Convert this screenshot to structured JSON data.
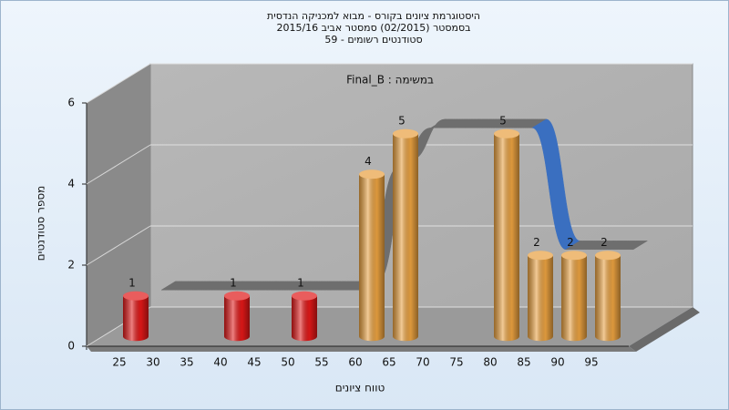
{
  "chart_data": {
    "type": "bar3d",
    "title": [
      "היסטוגרמת ציונים בקורס - מבוא למכניקה הנדסית",
      "בסמסטר (02/2015) סמסטר אביב 2015/16",
      "סטודנטים רשומים - 59"
    ],
    "subtitle": "Final_B : במשימה",
    "x_label": "טווח ציונים",
    "y_label": "מספר סטודנטים",
    "categories": [
      "25",
      "30",
      "35",
      "40",
      "45",
      "50",
      "55",
      "60",
      "65",
      "70",
      "75",
      "80",
      "85",
      "90",
      "95"
    ],
    "values": [
      1,
      0,
      0,
      1,
      0,
      1,
      0,
      4,
      5,
      0,
      0,
      5,
      2,
      2,
      2
    ],
    "colors": [
      "#e01818",
      "#e01818",
      "#e01818",
      "#e01818",
      "#e01818",
      "#e01818",
      "#e8a040",
      "#e8a040",
      "#e8a040",
      "#e8a040",
      "#e8a040",
      "#e8a040",
      "#e8a040",
      "#e8a040",
      "#e8a040"
    ],
    "trend": {
      "values": [
        1,
        1,
        1,
        1,
        1,
        1,
        1,
        4,
        5,
        5,
        5,
        5,
        2,
        2,
        2
      ],
      "color": "#6e6e6e",
      "falling_color": "#3a6fc0"
    },
    "ylim": [
      0,
      6
    ],
    "yticks": [
      0,
      2,
      4,
      6
    ],
    "grid": true
  }
}
